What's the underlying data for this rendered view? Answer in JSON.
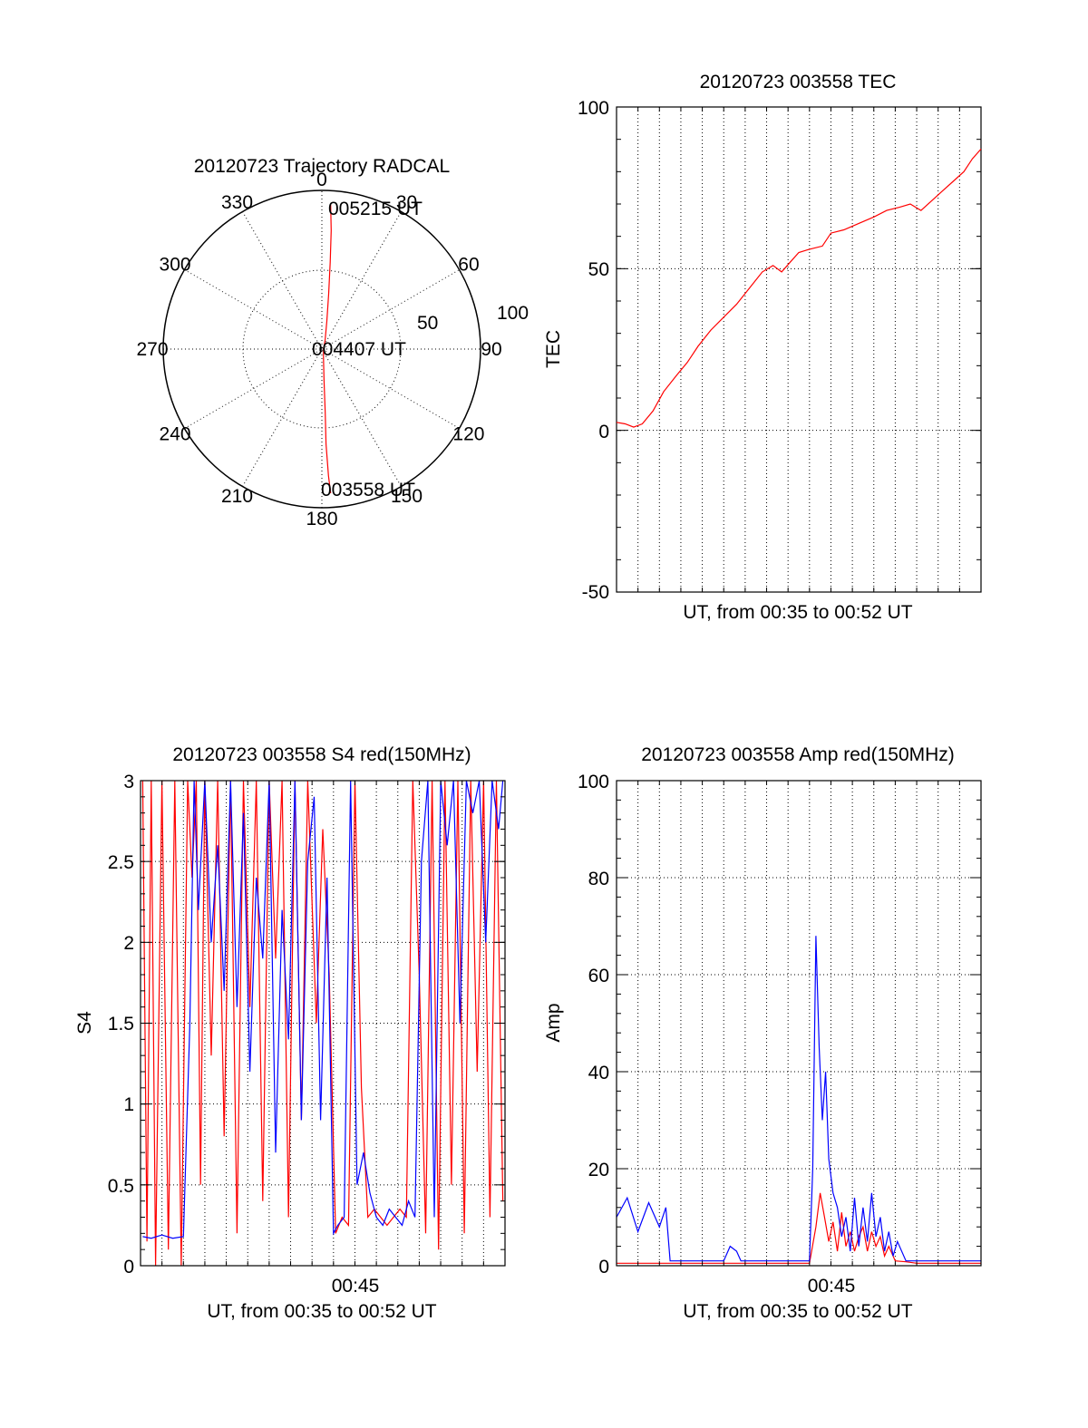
{
  "chart_data": [
    {
      "type": "polar",
      "title": "20120723 Trajectory RADCAL",
      "angle_labels": [
        "0",
        "30",
        "60",
        "90",
        "120",
        "150",
        "180",
        "210",
        "240",
        "270",
        "300",
        "330"
      ],
      "radius_labels": [
        "50",
        "100"
      ],
      "rlim": [
        0,
        100
      ],
      "grid": true,
      "annotations": [
        {
          "text": "005215 UT",
          "azimuth": 3,
          "radius": 91
        },
        {
          "text": "004407 UT",
          "azimuth": 0,
          "radius": 0
        },
        {
          "text": "003558 UT",
          "azimuth": 177,
          "radius": 91
        }
      ],
      "series": [
        {
          "color": "#ff0000",
          "points": [
            {
              "azimuth": 3.5,
              "radius": 91
            },
            {
              "azimuth": 4.5,
              "radius": 75
            },
            {
              "azimuth": 5.5,
              "radius": 55
            },
            {
              "azimuth": 7,
              "radius": 35
            },
            {
              "azimuth": 10,
              "radius": 18
            },
            {
              "azimuth": 20,
              "radius": 6
            },
            {
              "azimuth": 90,
              "radius": 1
            },
            {
              "azimuth": 170,
              "radius": 6
            },
            {
              "azimuth": 176,
              "radius": 20
            },
            {
              "azimuth": 177,
              "radius": 40
            },
            {
              "azimuth": 177.5,
              "radius": 60
            },
            {
              "azimuth": 177,
              "radius": 80
            },
            {
              "azimuth": 176.5,
              "radius": 91
            }
          ]
        }
      ]
    },
    {
      "type": "line",
      "title": "20120723 003558 TEC",
      "xlabel": "UT, from 00:35 to 00:52 UT",
      "ylabel": "TEC",
      "xlim": [
        0,
        17
      ],
      "ylim": [
        -50,
        100
      ],
      "yticks": [
        -50,
        0,
        50,
        100
      ],
      "grid": true,
      "series": [
        {
          "color": "#ff0000",
          "x": [
            0,
            0.4,
            0.8,
            1.2,
            1.7,
            2.2,
            2.8,
            3.3,
            3.8,
            4.4,
            5.0,
            5.6,
            6.2,
            6.8,
            7.3,
            7.7,
            8.1,
            8.5,
            9.0,
            9.6,
            10.0,
            10.6,
            11.3,
            12.0,
            12.6,
            13.2,
            13.7,
            14.2,
            14.7,
            15.2,
            15.7,
            16.2,
            16.6,
            17.0
          ],
          "y": [
            2.5,
            2,
            1,
            2,
            6,
            12,
            17,
            21,
            26,
            31,
            35,
            39,
            44,
            49,
            51,
            49,
            52,
            55,
            56,
            57,
            61,
            62,
            64,
            66,
            68,
            69,
            70,
            68,
            71,
            74,
            77,
            80,
            84,
            87
          ]
        }
      ]
    },
    {
      "type": "line",
      "title": "20120723 003558 S4 red(150MHz)",
      "xlabel": "UT, from 00:35 to 00:52 UT",
      "ylabel": "S4",
      "xlim": [
        0,
        17
      ],
      "ylim": [
        0,
        3
      ],
      "yticks": [
        "0",
        "0.5",
        "1",
        "1.5",
        "2",
        "2.5",
        "3"
      ],
      "xticks": [
        "00:45"
      ],
      "grid": true,
      "series": [
        {
          "color": "#ff0000",
          "x": [
            0.1,
            0.3,
            0.5,
            0.7,
            1.0,
            1.3,
            1.6,
            1.9,
            2.2,
            2.4,
            2.6,
            2.8,
            3.0,
            3.3,
            3.6,
            3.9,
            4.2,
            4.5,
            4.8,
            5.1,
            5.4,
            5.7,
            6.0,
            6.3,
            6.6,
            6.9,
            7.2,
            7.5,
            7.8,
            8.2,
            8.5,
            8.8,
            9.1,
            9.4,
            9.7,
            10.0,
            10.3,
            10.6,
            10.9,
            11.2,
            11.5,
            11.8,
            12.1,
            12.4,
            12.7,
            13.0,
            13.3,
            13.6,
            13.9,
            14.2,
            14.5,
            14.8,
            15.1,
            15.4,
            15.7,
            16.0,
            16.3,
            16.6,
            16.9
          ],
          "y": [
            3,
            0.15,
            3,
            0,
            3,
            0.1,
            3,
            0,
            3,
            2.4,
            3,
            0.5,
            3,
            1.3,
            3,
            0.8,
            3,
            0.2,
            3,
            1.6,
            3,
            0.4,
            3,
            1.9,
            3,
            0.3,
            3,
            0.9,
            3,
            1.5,
            2.7,
            1.8,
            0.2,
            0.3,
            0.25,
            3,
            1.1,
            0.3,
            0.35,
            0.3,
            0.25,
            0.3,
            0.35,
            0.3,
            3,
            1.8,
            0.2,
            3,
            0.1,
            3,
            0.5,
            3,
            0.2,
            3,
            1.2,
            3,
            0.3,
            3,
            0.4
          ]
        },
        {
          "color": "#0000ff",
          "x": [
            0.1,
            0.5,
            1.0,
            1.5,
            2.0,
            2.3,
            2.5,
            2.7,
            3.0,
            3.3,
            3.6,
            3.9,
            4.2,
            4.5,
            4.8,
            5.1,
            5.4,
            5.7,
            6.0,
            6.3,
            6.6,
            6.9,
            7.2,
            7.5,
            7.8,
            8.1,
            8.4,
            8.7,
            9.0,
            9.2,
            9.5,
            9.8,
            10.1,
            10.4,
            10.7,
            11.0,
            11.3,
            11.6,
            11.9,
            12.2,
            12.5,
            12.8,
            13.1,
            13.4,
            13.7,
            14.0,
            14.3,
            14.6,
            14.9,
            15.2,
            15.5,
            15.8,
            16.1,
            16.4,
            16.7,
            16.9
          ],
          "y": [
            0.18,
            0.17,
            0.19,
            0.17,
            0.18,
            1.5,
            3,
            2.2,
            3,
            2.0,
            2.6,
            1.7,
            3,
            1.6,
            2.8,
            1.2,
            2.4,
            1.9,
            3,
            0.7,
            2.2,
            1.4,
            3,
            0.9,
            2.5,
            2.9,
            0.9,
            2.4,
            0.2,
            0.25,
            0.3,
            3,
            0.5,
            0.7,
            0.45,
            0.3,
            0.25,
            0.35,
            0.3,
            0.25,
            0.4,
            0.3,
            2.5,
            3,
            0.3,
            3,
            2.6,
            3,
            1.5,
            3,
            2.8,
            3,
            2.0,
            3,
            2.7,
            3
          ]
        }
      ]
    },
    {
      "type": "line",
      "title": "20120723 003558 Amp red(150MHz)",
      "xlabel": "UT, from 00:35 to 00:52 UT",
      "ylabel": "Amp",
      "xlim": [
        0,
        17
      ],
      "ylim": [
        0,
        100
      ],
      "yticks": [
        "0",
        "20",
        "40",
        "60",
        "80",
        "100"
      ],
      "xticks": [
        "00:45"
      ],
      "grid": true,
      "series": [
        {
          "color": "#ff0000",
          "x": [
            0,
            1,
            2,
            3,
            4,
            5,
            6,
            7,
            8,
            9.0,
            9.3,
            9.5,
            9.7,
            9.9,
            10.1,
            10.3,
            10.5,
            10.7,
            10.9,
            11.1,
            11.3,
            11.5,
            11.7,
            11.9,
            12.1,
            12.3,
            12.5,
            12.7,
            13.0,
            13.5,
            14,
            15,
            16,
            17
          ],
          "y": [
            0.5,
            0.5,
            0.5,
            0.5,
            0.5,
            0.5,
            0.5,
            0.5,
            0.5,
            0.5,
            8,
            15,
            10,
            5,
            9,
            3,
            11,
            4,
            7,
            3,
            6,
            8,
            3,
            7,
            4,
            6,
            2,
            4,
            1,
            0.8,
            0.5,
            0.5,
            0.5,
            0.5
          ]
        },
        {
          "color": "#0000ff",
          "x": [
            0,
            0.5,
            1.0,
            1.5,
            2.0,
            2.3,
            2.5,
            3,
            4,
            5,
            5.3,
            5.6,
            5.8,
            6.5,
            7.5,
            8.5,
            9.0,
            9.15,
            9.3,
            9.45,
            9.6,
            9.75,
            9.9,
            10.1,
            10.3,
            10.5,
            10.7,
            10.9,
            11.1,
            11.3,
            11.5,
            11.7,
            11.9,
            12.1,
            12.3,
            12.5,
            12.7,
            12.9,
            13.1,
            13.5,
            14,
            15,
            16,
            17
          ],
          "y": [
            10,
            14,
            7,
            13,
            8,
            12,
            1,
            1,
            1,
            1,
            4,
            3,
            1,
            1,
            1,
            1,
            1,
            20,
            68,
            45,
            30,
            40,
            22,
            15,
            12,
            6,
            10,
            3,
            14,
            4,
            12,
            5,
            15,
            6,
            10,
            3,
            7,
            2,
            5,
            1,
            1,
            1,
            1,
            1
          ]
        }
      ]
    }
  ]
}
